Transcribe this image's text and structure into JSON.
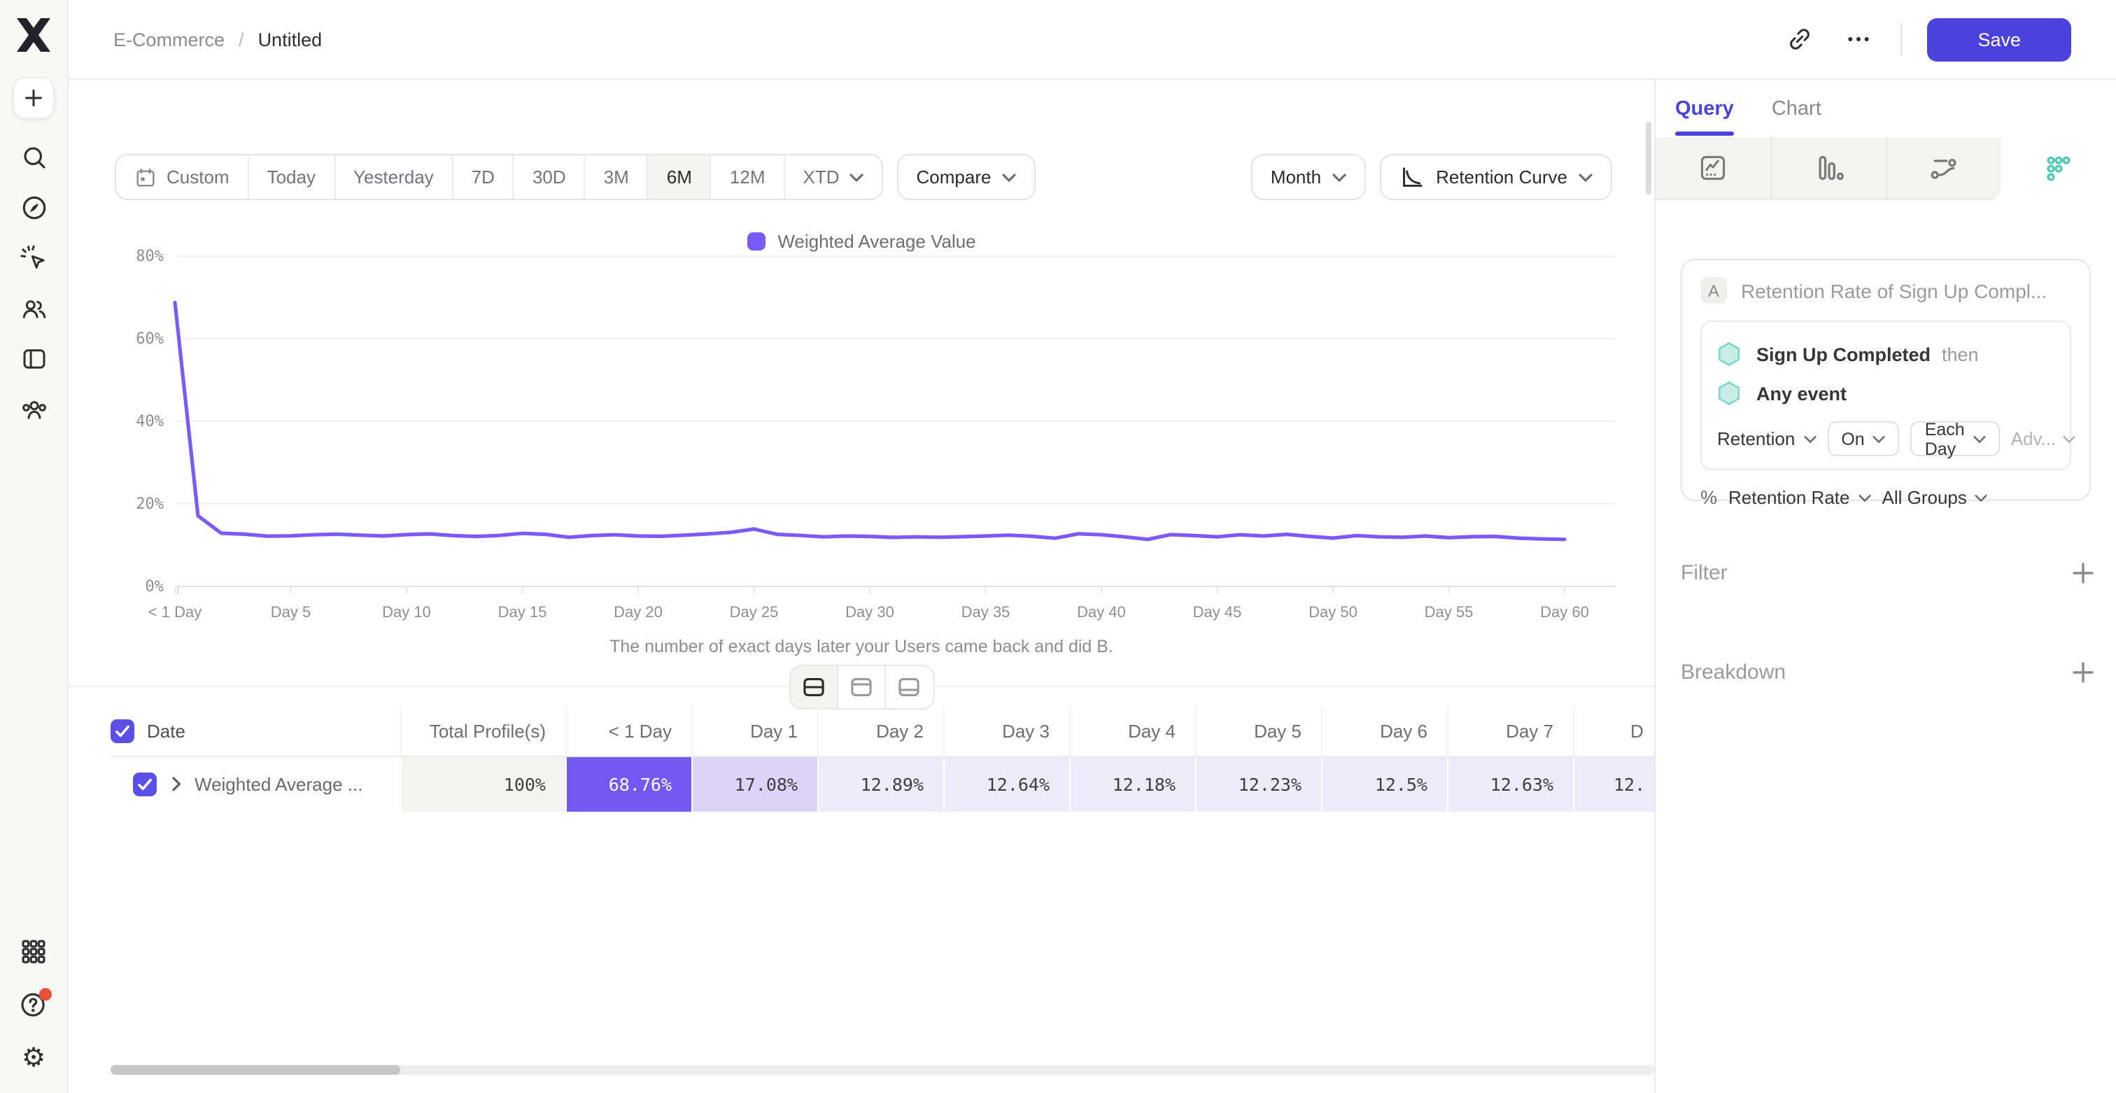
{
  "header": {
    "breadcrumb": {
      "workspace": "E-Commerce",
      "separator": "/",
      "title": "Untitled"
    },
    "save_label": "Save"
  },
  "sidebar": {
    "icons": [
      "mixpanel-logo",
      "create-plus",
      "search",
      "discover-compass",
      "events-cursor",
      "users",
      "boards",
      "cohorts",
      "apps-grid",
      "help",
      "settings"
    ],
    "help_has_notification": true
  },
  "toolbar": {
    "date_ranges": [
      "Custom",
      "Today",
      "Yesterday",
      "7D",
      "30D",
      "3M",
      "6M",
      "12M",
      "XTD"
    ],
    "selected_range": "6M",
    "compare_label": "Compare",
    "granularity": "Month",
    "chart_type": "Retention Curve"
  },
  "chart_data": {
    "type": "line",
    "title": "",
    "xlabel_note": "The number of exact days later your Users came back and did B.",
    "x_tick_labels": [
      "< 1 Day",
      "Day 5",
      "Day 10",
      "Day 15",
      "Day 20",
      "Day 25",
      "Day 30",
      "Day 35",
      "Day 40",
      "Day 45",
      "Day 50",
      "Day 55",
      "Day 60"
    ],
    "x_tick_days": [
      0,
      5,
      10,
      15,
      20,
      25,
      30,
      35,
      40,
      45,
      50,
      55,
      60
    ],
    "y_ticks": [
      "80%",
      "60%",
      "40%",
      "20%",
      "0%"
    ],
    "ylim": [
      0,
      80
    ],
    "grid": true,
    "legend_position": "top-center",
    "series": [
      {
        "name": "Weighted Average Value",
        "color": "#7b5bf7",
        "days": "0-60",
        "values": [
          68.76,
          17.08,
          12.89,
          12.64,
          12.18,
          12.23,
          12.5,
          12.63,
          12.4,
          12.2,
          12.55,
          12.7,
          12.3,
          12.1,
          12.35,
          12.85,
          12.6,
          11.9,
          12.3,
          12.5,
          12.2,
          12.15,
          12.4,
          12.7,
          13.1,
          13.9,
          12.6,
          12.35,
          12.0,
          12.2,
          12.1,
          11.85,
          12.0,
          11.9,
          12.05,
          12.2,
          12.4,
          12.15,
          11.65,
          12.75,
          12.5,
          12.0,
          11.4,
          12.55,
          12.3,
          12.0,
          12.5,
          12.2,
          12.6,
          12.1,
          11.7,
          12.3,
          12.0,
          11.9,
          12.2,
          11.8,
          12.05,
          12.1,
          11.7,
          11.5,
          11.4
        ]
      }
    ]
  },
  "view_toggle": {
    "options": [
      "split-view",
      "chart-view",
      "table-view"
    ],
    "selected": "split-view"
  },
  "table": {
    "columns": [
      "Date",
      "Total Profile(s)",
      "< 1 Day",
      "Day 1",
      "Day 2",
      "Day 3",
      "Day 4",
      "Day 5",
      "Day 6",
      "Day 7",
      "D"
    ],
    "rows": [
      {
        "checked": true,
        "label": "Weighted Average ...",
        "values": [
          "100%",
          "68.76%",
          "17.08%",
          "12.89%",
          "12.64%",
          "12.18%",
          "12.23%",
          "12.5%",
          "12.63%",
          "12."
        ]
      }
    ]
  },
  "query_panel": {
    "tabs": [
      {
        "label": "Query",
        "active": true
      },
      {
        "label": "Chart",
        "active": false
      }
    ],
    "report_types": [
      "insights",
      "funnels",
      "flows",
      "retention"
    ],
    "selected_report": "retention",
    "query_card": {
      "step_badge": "A",
      "step_title": "Retention Rate of Sign Up Compl...",
      "events": [
        {
          "name": "Sign Up Completed",
          "suffix": "then"
        },
        {
          "name": "Any event",
          "suffix": ""
        }
      ],
      "controls": {
        "retention_label": "Retention",
        "on_label": "On",
        "each_label": "Each Day",
        "adv_label": "Adv..."
      },
      "measure": {
        "prefix": "%",
        "metric": "Retention Rate",
        "groups": "All Groups"
      }
    },
    "sections": [
      {
        "label": "Filter"
      },
      {
        "label": "Breakdown"
      }
    ]
  },
  "colors": {
    "accent_indigo": "#4b41dd",
    "line_purple": "#7b5bf7",
    "cell_strong": "#7458f0",
    "cell_medium": "#dcd4f8",
    "cell_light": "#edeafa",
    "cell_gray": "#f3f3f2",
    "checkbox_purple": "#5a50e6",
    "teal_event": "#c8ece7",
    "teal_stroke": "#82d7c9",
    "notification_red": "#e8503a"
  }
}
